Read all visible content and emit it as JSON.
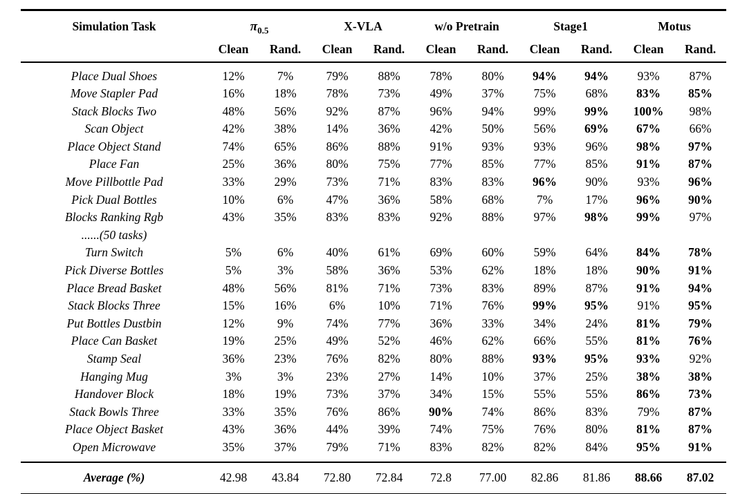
{
  "table": {
    "task_header": "Simulation Task",
    "groups": [
      {
        "label_main": "π",
        "label_sub": "0.5"
      },
      {
        "label": "X-VLA"
      },
      {
        "label": "w/o Pretrain"
      },
      {
        "label": "Stage1"
      },
      {
        "label": "Motus"
      }
    ],
    "sub_headers": [
      "Clean",
      "Rand."
    ],
    "rows": [
      {
        "task": "Place Dual Shoes",
        "values": [
          "12%",
          "7%",
          "79%",
          "88%",
          "78%",
          "80%",
          "94%",
          "94%",
          "93%",
          "87%"
        ],
        "bold": [
          6,
          7
        ]
      },
      {
        "task": "Move Stapler Pad",
        "values": [
          "16%",
          "18%",
          "78%",
          "73%",
          "49%",
          "37%",
          "75%",
          "68%",
          "83%",
          "85%"
        ],
        "bold": [
          8,
          9
        ]
      },
      {
        "task": "Stack Blocks Two",
        "values": [
          "48%",
          "56%",
          "92%",
          "87%",
          "96%",
          "94%",
          "99%",
          "99%",
          "100%",
          "98%"
        ],
        "bold": [
          7,
          8
        ]
      },
      {
        "task": "Scan Object",
        "values": [
          "42%",
          "38%",
          "14%",
          "36%",
          "42%",
          "50%",
          "56%",
          "69%",
          "67%",
          "66%"
        ],
        "bold": [
          7,
          8
        ]
      },
      {
        "task": "Place Object Stand",
        "values": [
          "74%",
          "65%",
          "86%",
          "88%",
          "91%",
          "93%",
          "93%",
          "96%",
          "98%",
          "97%"
        ],
        "bold": [
          8,
          9
        ]
      },
      {
        "task": "Place Fan",
        "values": [
          "25%",
          "36%",
          "80%",
          "75%",
          "77%",
          "85%",
          "77%",
          "85%",
          "91%",
          "87%"
        ],
        "bold": [
          8,
          9
        ]
      },
      {
        "task": "Move Pillbottle Pad",
        "values": [
          "33%",
          "29%",
          "73%",
          "71%",
          "83%",
          "83%",
          "96%",
          "90%",
          "93%",
          "96%"
        ],
        "bold": [
          6,
          9
        ]
      },
      {
        "task": "Pick Dual Bottles",
        "values": [
          "10%",
          "6%",
          "47%",
          "36%",
          "58%",
          "68%",
          "7%",
          "17%",
          "96%",
          "90%"
        ],
        "bold": [
          8,
          9
        ]
      },
      {
        "task": "Blocks Ranking Rgb",
        "task_line2": "......(50 tasks)",
        "values": [
          "43%",
          "35%",
          "83%",
          "83%",
          "92%",
          "88%",
          "97%",
          "98%",
          "99%",
          "97%"
        ],
        "bold": [
          7,
          8
        ]
      },
      {
        "task": "Turn Switch",
        "values": [
          "5%",
          "6%",
          "40%",
          "61%",
          "69%",
          "60%",
          "59%",
          "64%",
          "84%",
          "78%"
        ],
        "bold": [
          8,
          9
        ]
      },
      {
        "task": "Pick Diverse Bottles",
        "values": [
          "5%",
          "3%",
          "58%",
          "36%",
          "53%",
          "62%",
          "18%",
          "18%",
          "90%",
          "91%"
        ],
        "bold": [
          8,
          9
        ]
      },
      {
        "task": "Place Bread Basket",
        "values": [
          "48%",
          "56%",
          "81%",
          "71%",
          "73%",
          "83%",
          "89%",
          "87%",
          "91%",
          "94%"
        ],
        "bold": [
          8,
          9
        ]
      },
      {
        "task": "Stack Blocks Three",
        "values": [
          "15%",
          "16%",
          "6%",
          "10%",
          "71%",
          "76%",
          "99%",
          "95%",
          "91%",
          "95%"
        ],
        "bold": [
          6,
          7,
          9
        ]
      },
      {
        "task": "Put Bottles Dustbin",
        "values": [
          "12%",
          "9%",
          "74%",
          "77%",
          "36%",
          "33%",
          "34%",
          "24%",
          "81%",
          "79%"
        ],
        "bold": [
          8,
          9
        ]
      },
      {
        "task": "Place Can Basket",
        "values": [
          "19%",
          "25%",
          "49%",
          "52%",
          "46%",
          "62%",
          "66%",
          "55%",
          "81%",
          "76%"
        ],
        "bold": [
          8,
          9
        ]
      },
      {
        "task": "Stamp Seal",
        "values": [
          "36%",
          "23%",
          "76%",
          "82%",
          "80%",
          "88%",
          "93%",
          "95%",
          "93%",
          "92%"
        ],
        "bold": [
          6,
          7,
          8
        ]
      },
      {
        "task": "Hanging Mug",
        "values": [
          "3%",
          "3%",
          "23%",
          "27%",
          "14%",
          "10%",
          "37%",
          "25%",
          "38%",
          "38%"
        ],
        "bold": [
          8,
          9
        ]
      },
      {
        "task": "Handover Block",
        "values": [
          "18%",
          "19%",
          "73%",
          "37%",
          "34%",
          "15%",
          "55%",
          "55%",
          "86%",
          "73%"
        ],
        "bold": [
          8,
          9
        ]
      },
      {
        "task": "Stack Bowls Three",
        "values": [
          "33%",
          "35%",
          "76%",
          "86%",
          "90%",
          "74%",
          "86%",
          "83%",
          "79%",
          "87%"
        ],
        "bold": [
          4,
          9
        ]
      },
      {
        "task": "Place Object Basket",
        "values": [
          "43%",
          "36%",
          "44%",
          "39%",
          "74%",
          "75%",
          "76%",
          "80%",
          "81%",
          "87%"
        ],
        "bold": [
          8,
          9
        ]
      },
      {
        "task": "Open Microwave",
        "values": [
          "35%",
          "37%",
          "79%",
          "71%",
          "83%",
          "82%",
          "82%",
          "84%",
          "95%",
          "91%"
        ],
        "bold": [
          8,
          9
        ]
      }
    ],
    "average": {
      "task": "Average (%)",
      "values": [
        "42.98",
        "43.84",
        "72.80",
        "72.84",
        "72.8",
        "77.00",
        "82.86",
        "81.86",
        "88.66",
        "87.02"
      ],
      "bold": [
        8,
        9
      ]
    }
  }
}
